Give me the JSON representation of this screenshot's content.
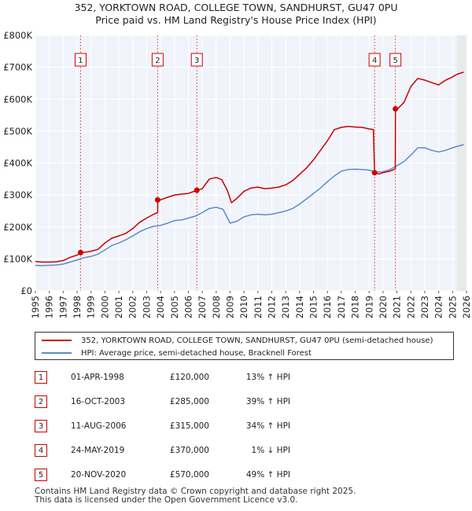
{
  "chart_data": {
    "type": "line",
    "title": [
      "352, YORKTOWN ROAD, COLLEGE TOWN, SANDHURST, GU47 0PU",
      "Price paid vs. HM Land Registry's House Price Index (HPI)"
    ],
    "xlim": [
      1995,
      2026
    ],
    "ylim": [
      0,
      800000
    ],
    "x_ticks": [
      "1995",
      "1996",
      "1997",
      "1998",
      "1999",
      "2000",
      "2001",
      "2002",
      "2003",
      "2004",
      "2005",
      "2006",
      "2007",
      "2008",
      "2009",
      "2010",
      "2011",
      "2012",
      "2013",
      "2014",
      "2015",
      "2016",
      "2017",
      "2018",
      "2019",
      "2020",
      "2021",
      "2022",
      "2023",
      "2024",
      "2025",
      "2026"
    ],
    "y_ticks": [
      {
        "value": 0,
        "label": "£0"
      },
      {
        "value": 100000,
        "label": "£100K"
      },
      {
        "value": 200000,
        "label": "£200K"
      },
      {
        "value": 300000,
        "label": "£300K"
      },
      {
        "value": 400000,
        "label": "£400K"
      },
      {
        "value": 500000,
        "label": "£500K"
      },
      {
        "value": 600000,
        "label": "£600K"
      },
      {
        "value": 700000,
        "label": "£700K"
      },
      {
        "value": 800000,
        "label": "£800K"
      }
    ],
    "grid": true,
    "forecast_from": 2025.3,
    "series": [
      {
        "name": "352, YORKTOWN ROAD, COLLEGE TOWN, SANDHURST, GU47 0PU (semi-detached house)",
        "color": "#cc0000",
        "points": [
          [
            1995,
            92000
          ],
          [
            1995.5,
            90000
          ],
          [
            1996,
            90000
          ],
          [
            1996.5,
            91000
          ],
          [
            1997,
            95000
          ],
          [
            1997.5,
            105000
          ],
          [
            1998,
            112000
          ],
          [
            1998.25,
            120000
          ],
          [
            1998.6,
            121000
          ],
          [
            1999,
            124000
          ],
          [
            1999.5,
            130000
          ],
          [
            2000,
            150000
          ],
          [
            2000.5,
            165000
          ],
          [
            2001,
            172000
          ],
          [
            2001.5,
            180000
          ],
          [
            2002,
            195000
          ],
          [
            2002.5,
            215000
          ],
          [
            2003,
            228000
          ],
          [
            2003.5,
            240000
          ],
          [
            2003.79,
            245000
          ],
          [
            2003.8,
            285000
          ],
          [
            2004,
            285000
          ],
          [
            2004.5,
            293000
          ],
          [
            2005,
            300000
          ],
          [
            2005.5,
            303000
          ],
          [
            2006,
            305000
          ],
          [
            2006.61,
            315000
          ],
          [
            2007,
            320000
          ],
          [
            2007.5,
            350000
          ],
          [
            2008,
            355000
          ],
          [
            2008.4,
            348000
          ],
          [
            2008.8,
            315000
          ],
          [
            2009.1,
            276000
          ],
          [
            2009.5,
            290000
          ],
          [
            2010,
            312000
          ],
          [
            2010.5,
            322000
          ],
          [
            2011,
            325000
          ],
          [
            2011.5,
            320000
          ],
          [
            2012,
            322000
          ],
          [
            2012.5,
            325000
          ],
          [
            2013,
            332000
          ],
          [
            2013.5,
            345000
          ],
          [
            2014,
            365000
          ],
          [
            2014.5,
            385000
          ],
          [
            2015,
            410000
          ],
          [
            2015.5,
            440000
          ],
          [
            2016,
            470000
          ],
          [
            2016.5,
            505000
          ],
          [
            2017,
            512000
          ],
          [
            2017.5,
            515000
          ],
          [
            2018,
            513000
          ],
          [
            2018.5,
            512000
          ],
          [
            2019,
            507000
          ],
          [
            2019.3,
            505000
          ],
          [
            2019.39,
            370000
          ],
          [
            2019.7,
            366000
          ],
          [
            2020,
            370000
          ],
          [
            2020.5,
            375000
          ],
          [
            2020.88,
            382000
          ],
          [
            2020.89,
            570000
          ],
          [
            2021,
            568000
          ],
          [
            2021.5,
            590000
          ],
          [
            2022,
            640000
          ],
          [
            2022.5,
            665000
          ],
          [
            2023,
            660000
          ],
          [
            2023.5,
            652000
          ],
          [
            2024,
            645000
          ],
          [
            2024.5,
            660000
          ],
          [
            2025,
            670000
          ],
          [
            2025.3,
            678000
          ],
          [
            2025.8,
            685000
          ]
        ]
      },
      {
        "name": "HPI: Average price, semi-detached house, Bracknell Forest",
        "color": "#5b8ccb",
        "points": [
          [
            1995,
            80000
          ],
          [
            1995.5,
            79000
          ],
          [
            1996,
            80000
          ],
          [
            1996.5,
            81000
          ],
          [
            1997,
            84000
          ],
          [
            1997.5,
            90000
          ],
          [
            1998,
            97000
          ],
          [
            1998.5,
            104000
          ],
          [
            1999,
            108000
          ],
          [
            1999.5,
            115000
          ],
          [
            2000,
            128000
          ],
          [
            2000.5,
            142000
          ],
          [
            2001,
            150000
          ],
          [
            2001.5,
            160000
          ],
          [
            2002,
            172000
          ],
          [
            2002.5,
            185000
          ],
          [
            2003,
            195000
          ],
          [
            2003.5,
            202000
          ],
          [
            2004,
            205000
          ],
          [
            2004.5,
            212000
          ],
          [
            2005,
            220000
          ],
          [
            2005.5,
            222000
          ],
          [
            2006,
            228000
          ],
          [
            2006.5,
            234000
          ],
          [
            2007,
            245000
          ],
          [
            2007.5,
            258000
          ],
          [
            2008,
            262000
          ],
          [
            2008.5,
            255000
          ],
          [
            2009,
            212000
          ],
          [
            2009.5,
            218000
          ],
          [
            2010,
            232000
          ],
          [
            2010.5,
            238000
          ],
          [
            2011,
            240000
          ],
          [
            2011.5,
            238000
          ],
          [
            2012,
            240000
          ],
          [
            2012.5,
            245000
          ],
          [
            2013,
            250000
          ],
          [
            2013.5,
            258000
          ],
          [
            2014,
            272000
          ],
          [
            2014.5,
            288000
          ],
          [
            2015,
            305000
          ],
          [
            2015.5,
            322000
          ],
          [
            2016,
            342000
          ],
          [
            2016.5,
            360000
          ],
          [
            2017,
            375000
          ],
          [
            2017.5,
            380000
          ],
          [
            2018,
            381000
          ],
          [
            2018.5,
            380000
          ],
          [
            2019,
            378000
          ],
          [
            2019.5,
            372000
          ],
          [
            2020,
            373000
          ],
          [
            2020.5,
            380000
          ],
          [
            2021,
            392000
          ],
          [
            2021.5,
            405000
          ],
          [
            2022,
            425000
          ],
          [
            2022.5,
            448000
          ],
          [
            2023,
            448000
          ],
          [
            2023.5,
            440000
          ],
          [
            2024,
            435000
          ],
          [
            2024.5,
            440000
          ],
          [
            2025,
            448000
          ],
          [
            2025.3,
            452000
          ],
          [
            2025.8,
            458000
          ]
        ]
      }
    ],
    "sales": [
      {
        "num": "1",
        "x": 1998.25,
        "value": 120000
      },
      {
        "num": "2",
        "x": 2003.79,
        "value": 285000
      },
      {
        "num": "3",
        "x": 2006.61,
        "value": 315000
      },
      {
        "num": "4",
        "x": 2019.39,
        "value": 370000
      },
      {
        "num": "5",
        "x": 2020.89,
        "value": 570000
      }
    ]
  },
  "legend": [
    {
      "label": "352, YORKTOWN ROAD, COLLEGE TOWN, SANDHURST, GU47 0PU (semi-detached house)",
      "color": "#cc0000"
    },
    {
      "label": "HPI: Average price, semi-detached house, Bracknell Forest",
      "color": "#5b8ccb"
    }
  ],
  "transactions": [
    {
      "num": "1",
      "date": "01-APR-1998",
      "price": "£120,000",
      "hpi": "13% ↑ HPI"
    },
    {
      "num": "2",
      "date": "16-OCT-2003",
      "price": "£285,000",
      "hpi": "39% ↑ HPI"
    },
    {
      "num": "3",
      "date": "11-AUG-2006",
      "price": "£315,000",
      "hpi": "34% ↑ HPI"
    },
    {
      "num": "4",
      "date": "24-MAY-2019",
      "price": "£370,000",
      "hpi": "1% ↓ HPI"
    },
    {
      "num": "5",
      "date": "20-NOV-2020",
      "price": "£570,000",
      "hpi": "49% ↑ HPI"
    }
  ],
  "footer": [
    "Contains HM Land Registry data © Crown copyright and database right 2025.",
    "This data is licensed under the Open Government Licence v3.0."
  ]
}
